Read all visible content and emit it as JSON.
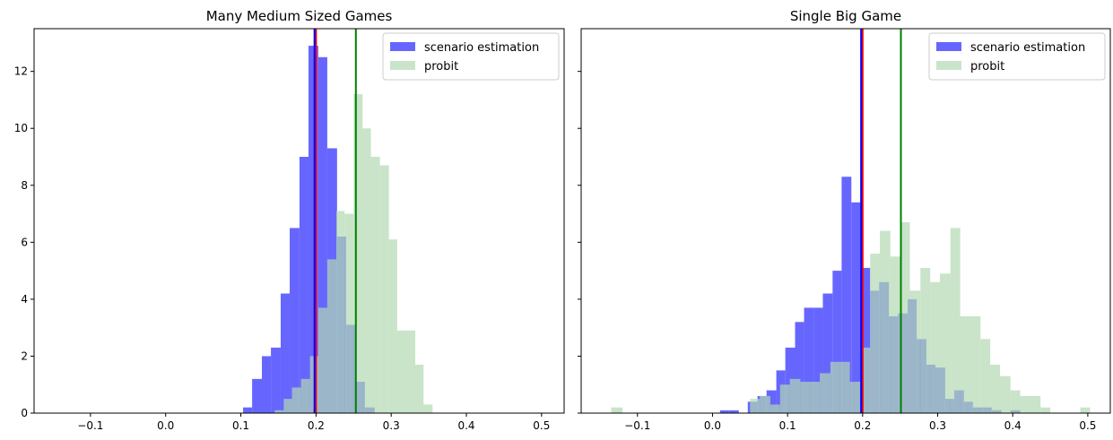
{
  "chart_data": [
    {
      "type": "histogram",
      "title": "Many Medium Sized Games",
      "xlim": [
        -0.175,
        0.53
      ],
      "ylim": [
        0,
        13.5
      ],
      "xticks": [
        -0.1,
        0.0,
        0.1,
        0.2,
        0.3,
        0.4,
        0.5
      ],
      "yticks": [
        0,
        2,
        4,
        6,
        8,
        10,
        12
      ],
      "legend_position": "upper right",
      "series": [
        {
          "name": "scenario estimation",
          "color": "#6666ff",
          "bins": [
            [
              0.103,
              0.115,
              0.2
            ],
            [
              0.115,
              0.128,
              1.2
            ],
            [
              0.128,
              0.14,
              2.0
            ],
            [
              0.14,
              0.153,
              2.3
            ],
            [
              0.153,
              0.165,
              4.2
            ],
            [
              0.165,
              0.178,
              6.5
            ],
            [
              0.178,
              0.19,
              9.0
            ],
            [
              0.19,
              0.203,
              12.9
            ],
            [
              0.203,
              0.215,
              12.5
            ],
            [
              0.215,
              0.228,
              9.3
            ],
            [
              0.228,
              0.24,
              6.2
            ],
            [
              0.24,
              0.253,
              3.1
            ],
            [
              0.253,
              0.265,
              1.1
            ],
            [
              0.265,
              0.278,
              0.2
            ]
          ]
        },
        {
          "name": "probit",
          "color": "#b2d9b2",
          "bins": [
            [
              0.145,
              0.157,
              0.1
            ],
            [
              0.157,
              0.168,
              0.5
            ],
            [
              0.168,
              0.18,
              0.9
            ],
            [
              0.18,
              0.192,
              1.2
            ],
            [
              0.192,
              0.203,
              2.0
            ],
            [
              0.203,
              0.215,
              3.7
            ],
            [
              0.215,
              0.227,
              5.4
            ],
            [
              0.227,
              0.238,
              7.1
            ],
            [
              0.238,
              0.25,
              7.0
            ],
            [
              0.25,
              0.262,
              11.2
            ],
            [
              0.262,
              0.273,
              10.0
            ],
            [
              0.273,
              0.285,
              9.0
            ],
            [
              0.285,
              0.297,
              8.7
            ],
            [
              0.297,
              0.308,
              6.1
            ],
            [
              0.308,
              0.32,
              2.9
            ],
            [
              0.32,
              0.332,
              2.9
            ],
            [
              0.332,
              0.343,
              1.7
            ],
            [
              0.343,
              0.355,
              0.3
            ]
          ]
        }
      ],
      "vlines": [
        {
          "x": 0.2,
          "color": "#ff0000"
        },
        {
          "x": 0.198,
          "color": "#0000ff"
        },
        {
          "x": 0.253,
          "color": "#008000"
        }
      ]
    },
    {
      "type": "histogram",
      "title": "Single Big Game",
      "xlim": [
        -0.175,
        0.53
      ],
      "ylim": [
        0,
        13.5
      ],
      "xticks": [
        -0.1,
        0.0,
        0.1,
        0.2,
        0.3,
        0.4,
        0.5
      ],
      "legend_position": "upper right",
      "series": [
        {
          "name": "scenario estimation",
          "color": "#6666ff",
          "bins": [
            [
              0.01,
              0.022,
              0.1
            ],
            [
              0.022,
              0.035,
              0.1
            ],
            [
              0.035,
              0.047,
              0.0
            ],
            [
              0.047,
              0.06,
              0.4
            ],
            [
              0.06,
              0.072,
              0.6
            ],
            [
              0.072,
              0.085,
              0.8
            ],
            [
              0.085,
              0.097,
              1.5
            ],
            [
              0.097,
              0.11,
              2.3
            ],
            [
              0.11,
              0.122,
              3.2
            ],
            [
              0.122,
              0.135,
              3.7
            ],
            [
              0.135,
              0.147,
              3.7
            ],
            [
              0.147,
              0.16,
              4.2
            ],
            [
              0.16,
              0.172,
              5.0
            ],
            [
              0.172,
              0.185,
              8.3
            ],
            [
              0.185,
              0.197,
              7.4
            ],
            [
              0.197,
              0.21,
              5.1
            ],
            [
              0.21,
              0.222,
              4.3
            ],
            [
              0.222,
              0.235,
              4.6
            ],
            [
              0.235,
              0.247,
              3.4
            ],
            [
              0.247,
              0.26,
              3.5
            ],
            [
              0.26,
              0.272,
              4.0
            ],
            [
              0.272,
              0.285,
              2.6
            ],
            [
              0.285,
              0.297,
              1.7
            ],
            [
              0.297,
              0.31,
              1.6
            ],
            [
              0.31,
              0.322,
              0.5
            ],
            [
              0.322,
              0.335,
              0.8
            ],
            [
              0.335,
              0.347,
              0.4
            ],
            [
              0.347,
              0.36,
              0.2
            ],
            [
              0.36,
              0.372,
              0.2
            ],
            [
              0.372,
              0.385,
              0.1
            ],
            [
              0.385,
              0.397,
              0.0
            ],
            [
              0.397,
              0.41,
              0.1
            ]
          ]
        },
        {
          "name": "probit",
          "color": "#b2d9b2",
          "bins": [
            [
              -0.135,
              -0.12,
              0.2
            ],
            [
              -0.12,
              0.05,
              0.0
            ],
            [
              0.05,
              0.063,
              0.5
            ],
            [
              0.063,
              0.077,
              0.6
            ],
            [
              0.077,
              0.09,
              0.3
            ],
            [
              0.09,
              0.103,
              1.0
            ],
            [
              0.103,
              0.117,
              1.2
            ],
            [
              0.117,
              0.13,
              1.1
            ],
            [
              0.13,
              0.143,
              1.1
            ],
            [
              0.143,
              0.157,
              1.4
            ],
            [
              0.157,
              0.17,
              1.8
            ],
            [
              0.17,
              0.183,
              1.8
            ],
            [
              0.183,
              0.197,
              1.1
            ],
            [
              0.197,
              0.21,
              2.3
            ],
            [
              0.21,
              0.223,
              5.6
            ],
            [
              0.223,
              0.237,
              6.4
            ],
            [
              0.237,
              0.25,
              5.5
            ],
            [
              0.25,
              0.263,
              6.7
            ],
            [
              0.263,
              0.277,
              4.3
            ],
            [
              0.277,
              0.29,
              5.1
            ],
            [
              0.29,
              0.303,
              4.6
            ],
            [
              0.303,
              0.317,
              4.9
            ],
            [
              0.317,
              0.33,
              6.5
            ],
            [
              0.33,
              0.343,
              3.4
            ],
            [
              0.343,
              0.357,
              3.4
            ],
            [
              0.357,
              0.37,
              2.6
            ],
            [
              0.37,
              0.383,
              1.7
            ],
            [
              0.383,
              0.397,
              1.3
            ],
            [
              0.397,
              0.41,
              0.8
            ],
            [
              0.41,
              0.423,
              0.6
            ],
            [
              0.423,
              0.437,
              0.6
            ],
            [
              0.437,
              0.45,
              0.2
            ],
            [
              0.45,
              0.49,
              0.0
            ],
            [
              0.49,
              0.503,
              0.2
            ]
          ]
        }
      ],
      "vlines": [
        {
          "x": 0.2,
          "color": "#ff0000"
        },
        {
          "x": 0.198,
          "color": "#0000ff"
        },
        {
          "x": 0.251,
          "color": "#008000"
        }
      ]
    }
  ]
}
